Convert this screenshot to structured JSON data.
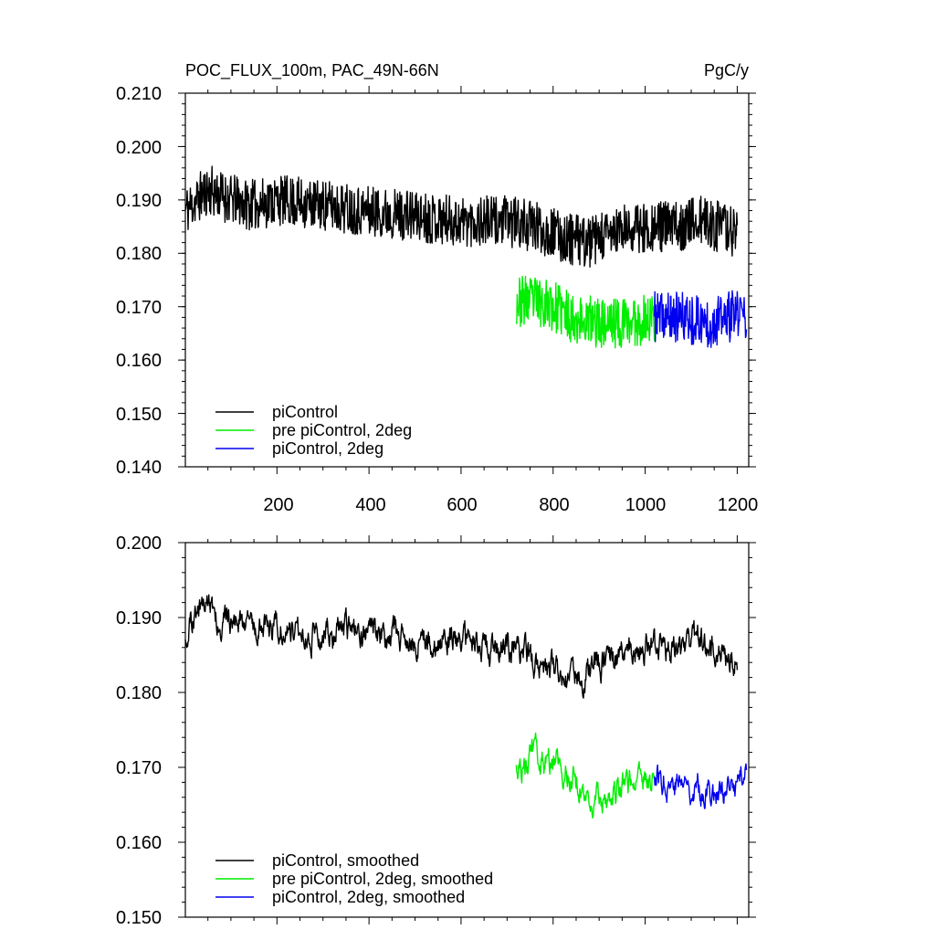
{
  "chart_data": [
    {
      "type": "line",
      "title_left": "POC_FLUX_100m, PAC_49N-66N",
      "title_right": "PgC/y",
      "xlim": [
        1,
        1225
      ],
      "ylim": [
        0.14,
        0.21
      ],
      "xticks": [
        200,
        400,
        600,
        800,
        1000,
        1200
      ],
      "xtick_labels": [
        "200",
        "400",
        "600",
        "800",
        "1000",
        "1200"
      ],
      "yticks": [
        0.14,
        0.15,
        0.16,
        0.17,
        0.18,
        0.19,
        0.2,
        0.21
      ],
      "ytick_labels": [
        "0.140",
        "0.150",
        "0.160",
        "0.170",
        "0.180",
        "0.190",
        "0.200",
        "0.210"
      ],
      "legend": {
        "position": "bottom-left"
      },
      "series": [
        {
          "name": "piControl",
          "color": "#000000",
          "x_start": 1,
          "x_end": 1200,
          "anchors": [
            [
              1,
              0.188
            ],
            [
              50,
              0.192
            ],
            [
              100,
              0.19
            ],
            [
              150,
              0.189
            ],
            [
              200,
              0.19
            ],
            [
              300,
              0.189
            ],
            [
              400,
              0.188
            ],
            [
              500,
              0.187
            ],
            [
              600,
              0.186
            ],
            [
              700,
              0.186
            ],
            [
              760,
              0.185
            ],
            [
              820,
              0.183
            ],
            [
              880,
              0.182
            ],
            [
              940,
              0.184
            ],
            [
              1000,
              0.185
            ],
            [
              1060,
              0.185
            ],
            [
              1120,
              0.186
            ],
            [
              1200,
              0.184
            ]
          ],
          "noise": 0.0048,
          "seed": 11
        },
        {
          "name": "pre piControl, 2deg",
          "color": "#00ee00",
          "x_start": 720,
          "x_end": 1020,
          "anchors": [
            [
              720,
              0.171
            ],
            [
              780,
              0.171
            ],
            [
              840,
              0.168
            ],
            [
              900,
              0.167
            ],
            [
              960,
              0.167
            ],
            [
              1020,
              0.168
            ]
          ],
          "noise": 0.0048,
          "seed": 23
        },
        {
          "name": "piControl, 2deg",
          "color": "#0000ee",
          "x_start": 1020,
          "x_end": 1220,
          "anchors": [
            [
              1020,
              0.168
            ],
            [
              1080,
              0.168
            ],
            [
              1140,
              0.167
            ],
            [
              1220,
              0.169
            ]
          ],
          "noise": 0.0048,
          "seed": 37
        }
      ]
    },
    {
      "type": "line",
      "xlim": [
        1,
        1225
      ],
      "ylim": [
        0.15,
        0.2
      ],
      "xticks": [
        200,
        400,
        600,
        800,
        1000,
        1200
      ],
      "yticks": [
        0.15,
        0.16,
        0.17,
        0.18,
        0.19,
        0.2
      ],
      "ytick_labels": [
        "0.150",
        "0.160",
        "0.170",
        "0.180",
        "0.190",
        "0.200"
      ],
      "legend": {
        "position": "bottom-left"
      },
      "series": [
        {
          "name": "piControl, smoothed",
          "color": "#000000",
          "x_start": 1,
          "x_end": 1200,
          "anchors": [
            [
              1,
              0.188
            ],
            [
              40,
              0.192
            ],
            [
              80,
              0.19
            ],
            [
              150,
              0.189
            ],
            [
              200,
              0.189
            ],
            [
              300,
              0.188
            ],
            [
              400,
              0.188
            ],
            [
              500,
              0.187
            ],
            [
              600,
              0.187
            ],
            [
              700,
              0.186
            ],
            [
              760,
              0.184
            ],
            [
              820,
              0.182
            ],
            [
              880,
              0.183
            ],
            [
              940,
              0.185
            ],
            [
              1000,
              0.186
            ],
            [
              1060,
              0.186
            ],
            [
              1120,
              0.187
            ],
            [
              1200,
              0.184
            ]
          ],
          "noise": 0.0024,
          "seed": 51
        },
        {
          "name": "pre piControl, 2deg, smoothed",
          "color": "#00ee00",
          "x_start": 720,
          "x_end": 1020,
          "anchors": [
            [
              720,
              0.171
            ],
            [
              780,
              0.171
            ],
            [
              840,
              0.169
            ],
            [
              880,
              0.166
            ],
            [
              920,
              0.167
            ],
            [
              960,
              0.168
            ],
            [
              1020,
              0.169
            ]
          ],
          "noise": 0.0024,
          "seed": 63
        },
        {
          "name": "piControl, 2deg, smoothed",
          "color": "#0000ee",
          "x_start": 1020,
          "x_end": 1220,
          "anchors": [
            [
              1020,
              0.169
            ],
            [
              1080,
              0.168
            ],
            [
              1140,
              0.167
            ],
            [
              1180,
              0.166
            ],
            [
              1220,
              0.17
            ]
          ],
          "noise": 0.0024,
          "seed": 77
        }
      ]
    }
  ]
}
